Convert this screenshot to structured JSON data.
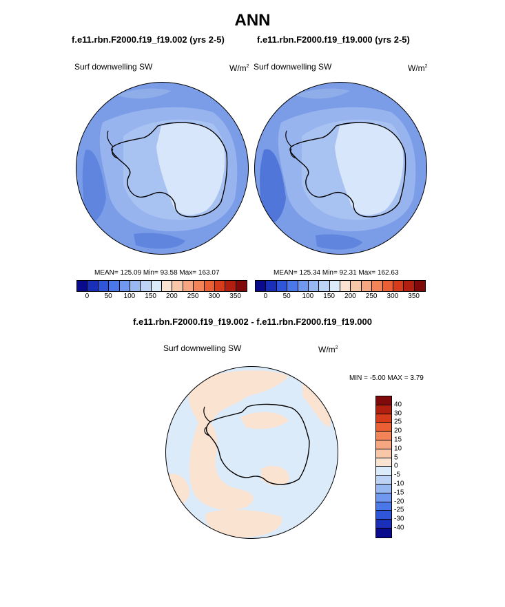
{
  "title": "ANN",
  "panels": [
    {
      "case": "f.e11.rbn.F2000.f19_f19.002 (yrs 2-5)",
      "variable": "Surf downwelling SW",
      "units": "W/m",
      "units_exp": "2",
      "stats": "MEAN= 125.09  Min=  93.58  Max= 163.07"
    },
    {
      "case": "f.e11.rbn.F2000.f19_f19.000 (yrs 2-5)",
      "variable": "Surf downwelling SW",
      "units": "W/m",
      "units_exp": "2",
      "stats": "MEAN= 125.34  Min=  92.31  Max= 162.63"
    }
  ],
  "diff": {
    "title": "f.e11.rbn.F2000.f19_f19.002 - f.e11.rbn.F2000.f19_f19.000",
    "variable": "Surf downwelling SW",
    "units": "W/m",
    "units_exp": "2",
    "stats": "MIN =  -5.00 MAX =  3.79"
  },
  "colorbar_abs": {
    "colors": [
      "#0a0a8c",
      "#1a2fb8",
      "#2f56d8",
      "#4a78e8",
      "#6f98ee",
      "#98b8f2",
      "#bcd3f6",
      "#dcebfa",
      "#fbe3d2",
      "#f8c7a8",
      "#f6a680",
      "#f28458",
      "#ea5f33",
      "#d63b1c",
      "#b01f10",
      "#800a0a"
    ],
    "labels": [
      "0",
      "50",
      "100",
      "150",
      "200",
      "250",
      "300",
      "350"
    ]
  },
  "colorbar_diff": {
    "colors": [
      "#800a0a",
      "#b01f10",
      "#d63b1c",
      "#ea5f33",
      "#f28458",
      "#f6a680",
      "#f8c7a8",
      "#fbe3d2",
      "#dcebfa",
      "#bcd3f6",
      "#98b8f2",
      "#6f98ee",
      "#4a78e8",
      "#2f56d8",
      "#1a2fb8",
      "#0a0a8c"
    ],
    "labels": [
      "40",
      "30",
      "25",
      "20",
      "15",
      "10",
      "5",
      "0",
      "-5",
      "-10",
      "-15",
      "-20",
      "-25",
      "-30",
      "-40"
    ]
  }
}
